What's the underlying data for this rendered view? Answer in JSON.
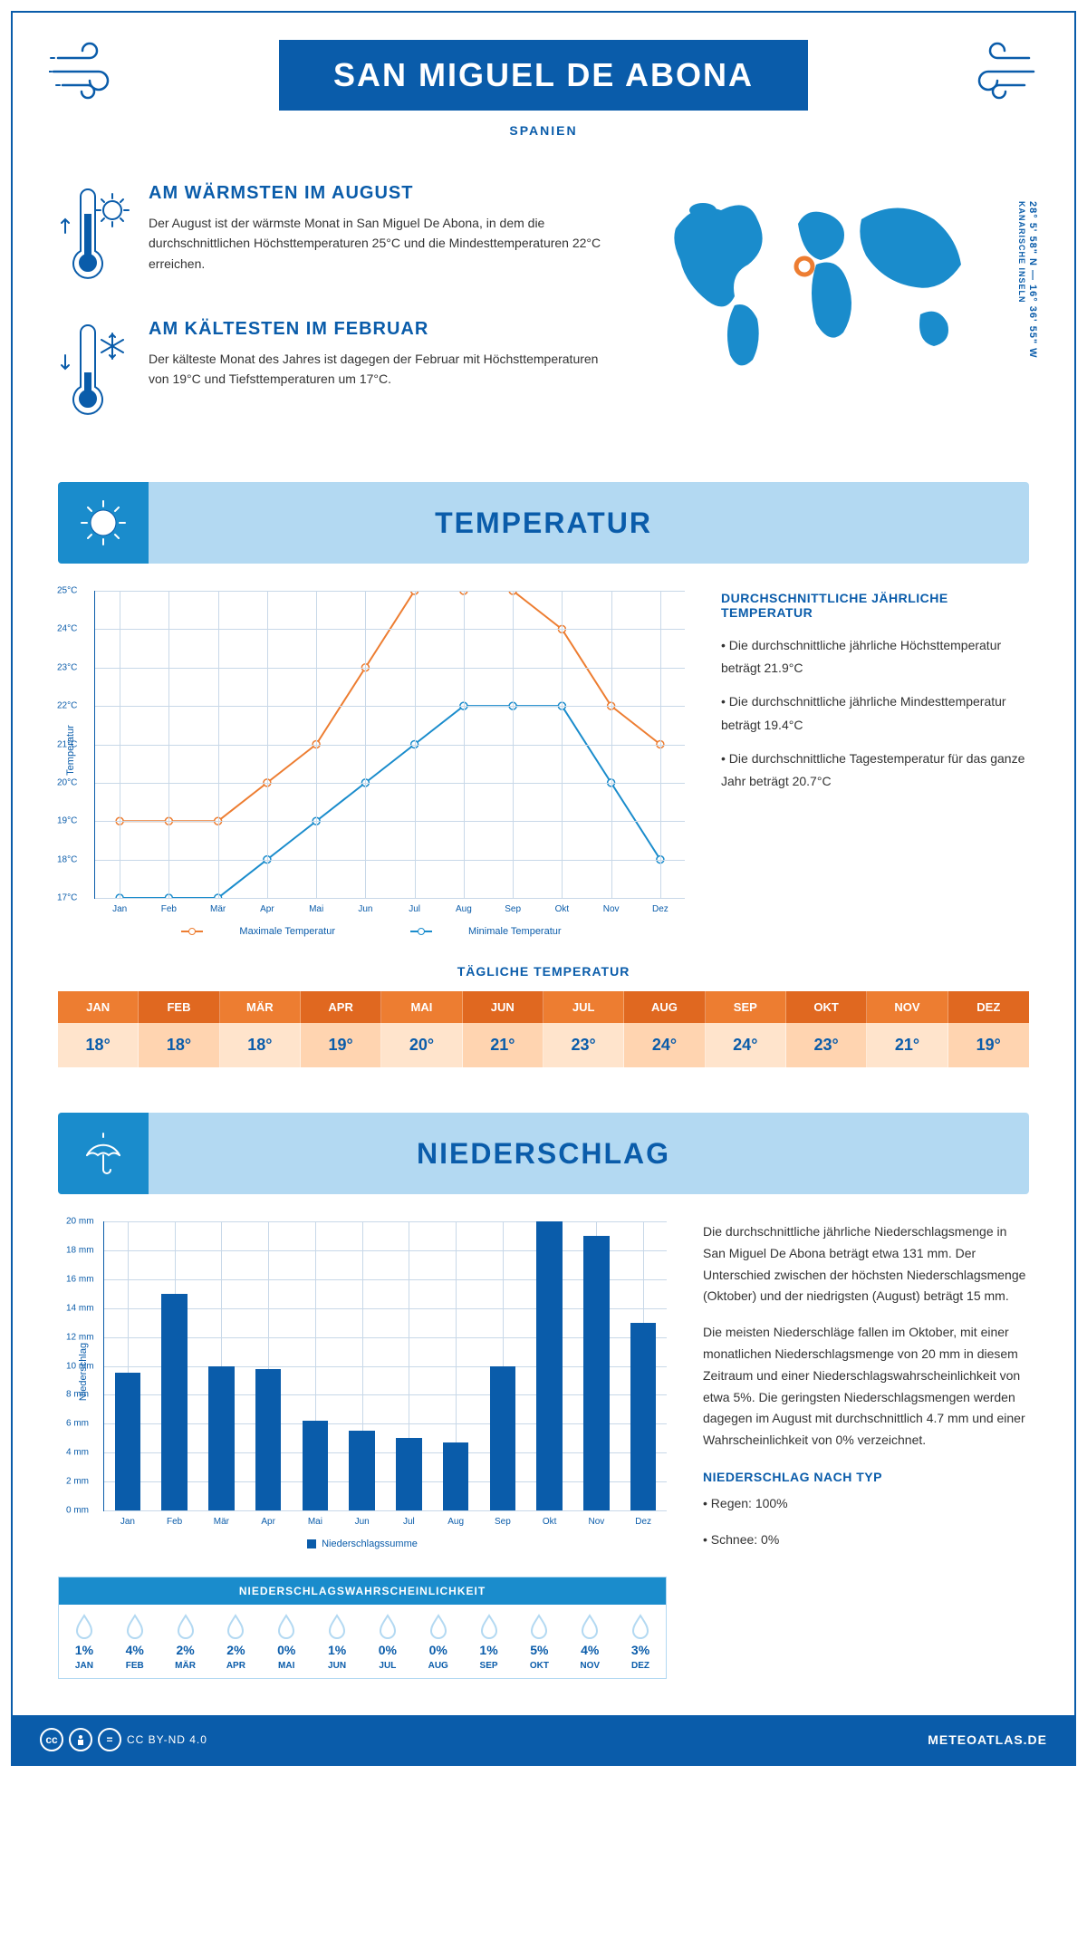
{
  "header": {
    "title": "SAN MIGUEL DE ABONA",
    "subtitle": "SPANIEN"
  },
  "coords": "28° 5' 58\" N — 16° 36' 55\" W",
  "coords_sub": "KANARISCHE INSELN",
  "info": {
    "warm_title": "AM WÄRMSTEN IM AUGUST",
    "warm_text": "Der August ist der wärmste Monat in San Miguel De Abona, in dem die durchschnittlichen Höchsttemperaturen 25°C und die Mindesttemperaturen 22°C erreichen.",
    "cold_title": "AM KÄLTESTEN IM FEBRUAR",
    "cold_text": "Der kälteste Monat des Jahres ist dagegen der Februar mit Höchsttemperaturen von 19°C und Tiefsttemperaturen um 17°C."
  },
  "sections": {
    "temp": "TEMPERATUR",
    "precip": "NIEDERSCHLAG"
  },
  "temp_chart": {
    "type": "line",
    "y_label": "Temperatur",
    "ylim": [
      17,
      25
    ],
    "ytick_step": 1,
    "y_unit": "°C",
    "months": [
      "Jan",
      "Feb",
      "Mär",
      "Apr",
      "Mai",
      "Jun",
      "Jul",
      "Aug",
      "Sep",
      "Okt",
      "Nov",
      "Dez"
    ],
    "max_series": {
      "label": "Maximale Temperatur",
      "color": "#ed7d31",
      "values": [
        19,
        19,
        19,
        20,
        21,
        23,
        25,
        25,
        25,
        24,
        22,
        21
      ]
    },
    "min_series": {
      "label": "Minimale Temperatur",
      "color": "#1a8ccc",
      "values": [
        17,
        17,
        17,
        18,
        19,
        20,
        21,
        22,
        22,
        22,
        20,
        18
      ]
    },
    "grid_color": "#c8d8e8",
    "axis_color": "#0a5caa",
    "marker": "circle",
    "marker_fill": "#ffffff",
    "line_width": 2
  },
  "temp_side": {
    "title": "DURCHSCHNITTLICHE JÄHRLICHE TEMPERATUR",
    "bullet1": "• Die durchschnittliche jährliche Höchsttemperatur beträgt 21.9°C",
    "bullet2": "• Die durchschnittliche jährliche Mindesttemperatur beträgt 19.4°C",
    "bullet3": "• Die durchschnittliche Tagestemperatur für das ganze Jahr beträgt 20.7°C"
  },
  "daily": {
    "title": "TÄGLICHE TEMPERATUR",
    "months": [
      "JAN",
      "FEB",
      "MÄR",
      "APR",
      "MAI",
      "JUN",
      "JUL",
      "AUG",
      "SEP",
      "OKT",
      "NOV",
      "DEZ"
    ],
    "values": [
      "18°",
      "18°",
      "18°",
      "19°",
      "20°",
      "21°",
      "23°",
      "24°",
      "24°",
      "23°",
      "21°",
      "19°"
    ],
    "head_bg": "#ed7d31",
    "head_bg_alt": "#e06820",
    "cell_bg": "#ffe4cc",
    "cell_bg_alt": "#ffd4b0",
    "text_color": "#0a5caa"
  },
  "precip_chart": {
    "type": "bar",
    "y_label": "Niederschlag",
    "ylim": [
      0,
      20
    ],
    "ytick_step": 2,
    "y_unit": " mm",
    "months": [
      "Jan",
      "Feb",
      "Mär",
      "Apr",
      "Mai",
      "Jun",
      "Jul",
      "Aug",
      "Sep",
      "Okt",
      "Nov",
      "Dez"
    ],
    "values": [
      9.5,
      15,
      10,
      9.8,
      6.2,
      5.5,
      5,
      4.7,
      10,
      20,
      19,
      13
    ],
    "bar_color": "#0a5caa",
    "grid_color": "#c8d8e8",
    "bar_width": 0.55,
    "legend": "Niederschlagssumme"
  },
  "precip_side": {
    "p1": "Die durchschnittliche jährliche Niederschlagsmenge in San Miguel De Abona beträgt etwa 131 mm. Der Unterschied zwischen der höchsten Niederschlagsmenge (Oktober) und der niedrigsten (August) beträgt 15 mm.",
    "p2": "Die meisten Niederschläge fallen im Oktober, mit einer monatlichen Niederschlagsmenge von 20 mm in diesem Zeitraum und einer Niederschlagswahrscheinlichkeit von etwa 5%. Die geringsten Niederschlagsmengen werden dagegen im August mit durchschnittlich 4.7 mm und einer Wahrscheinlichkeit von 0% verzeichnet.",
    "type_title": "NIEDERSCHLAG NACH TYP",
    "rain": "• Regen: 100%",
    "snow": "• Schnee: 0%"
  },
  "prob": {
    "title": "NIEDERSCHLAGSWAHRSCHEINLICHKEIT",
    "months": [
      "JAN",
      "FEB",
      "MÄR",
      "APR",
      "MAI",
      "JUN",
      "JUL",
      "AUG",
      "SEP",
      "OKT",
      "NOV",
      "DEZ"
    ],
    "values": [
      "1%",
      "4%",
      "2%",
      "2%",
      "0%",
      "1%",
      "0%",
      "0%",
      "1%",
      "5%",
      "4%",
      "3%"
    ],
    "drop_color": "#b3d9f2"
  },
  "footer": {
    "license": "CC BY-ND 4.0",
    "brand": "METEOATLAS.DE"
  },
  "colors": {
    "primary": "#0a5caa",
    "secondary": "#1a8ccc",
    "light": "#b3d9f2",
    "orange": "#ed7d31"
  }
}
